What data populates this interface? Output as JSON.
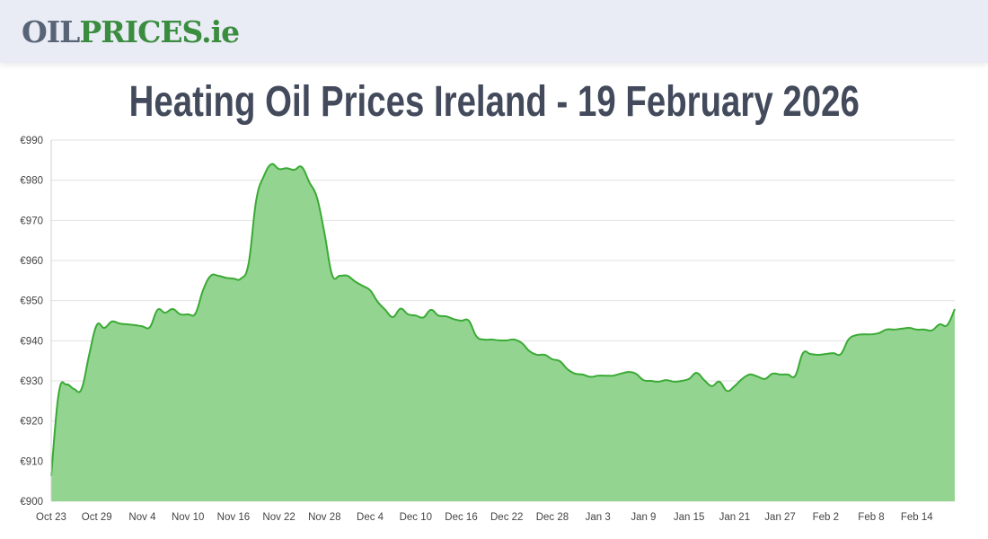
{
  "header": {
    "logo_part1": "OIL",
    "logo_part2": "PRICES.ie"
  },
  "page_title": "Heating Oil Prices Ireland - 19 February 2026",
  "colors": {
    "line": "#3aaa35",
    "fill": "#93d590",
    "grid": "#e2e2e2",
    "logo_gray": "#586376",
    "logo_green": "#3a8c3f"
  },
  "chart_data": {
    "type": "area",
    "title": "",
    "xlabel": "",
    "ylabel": "",
    "ylim": [
      900,
      990
    ],
    "grid": true,
    "y_ticks": [
      "€900",
      "€910",
      "€920",
      "€930",
      "€940",
      "€950",
      "€960",
      "€970",
      "€980",
      "€990"
    ],
    "x_ticks": [
      "Oct 23",
      "Oct 29",
      "Nov 4",
      "Nov 10",
      "Nov 16",
      "Nov 22",
      "Nov 28",
      "Dec 4",
      "Dec 10",
      "Dec 16",
      "Dec 22",
      "Dec 28",
      "Jan 3",
      "Jan 9",
      "Jan 15",
      "Jan 21",
      "Jan 27",
      "Feb 2",
      "Feb 8",
      "Feb 14"
    ],
    "x": [
      "Oct 23",
      "Oct 24",
      "Oct 25",
      "Oct 26",
      "Oct 27",
      "Oct 28",
      "Oct 29",
      "Oct 30",
      "Oct 31",
      "Nov 1",
      "Nov 2",
      "Nov 3",
      "Nov 4",
      "Nov 5",
      "Nov 6",
      "Nov 7",
      "Nov 8",
      "Nov 9",
      "Nov 10",
      "Nov 11",
      "Nov 12",
      "Nov 13",
      "Nov 14",
      "Nov 15",
      "Nov 16",
      "Nov 17",
      "Nov 18",
      "Nov 19",
      "Nov 20",
      "Nov 21",
      "Nov 22",
      "Nov 23",
      "Nov 24",
      "Nov 25",
      "Nov 26",
      "Nov 27",
      "Nov 28",
      "Nov 29",
      "Nov 30",
      "Dec 1",
      "Dec 2",
      "Dec 3",
      "Dec 4",
      "Dec 5",
      "Dec 6",
      "Dec 7",
      "Dec 8",
      "Dec 9",
      "Dec 10",
      "Dec 11",
      "Dec 12",
      "Dec 13",
      "Dec 14",
      "Dec 15",
      "Dec 16",
      "Dec 17",
      "Dec 18",
      "Dec 19",
      "Dec 20",
      "Dec 21",
      "Dec 22",
      "Dec 23",
      "Dec 24",
      "Dec 25",
      "Dec 26",
      "Dec 27",
      "Dec 28",
      "Dec 29",
      "Dec 30",
      "Dec 31",
      "Jan 1",
      "Jan 2",
      "Jan 3",
      "Jan 4",
      "Jan 5",
      "Jan 6",
      "Jan 7",
      "Jan 8",
      "Jan 9",
      "Jan 10",
      "Jan 11",
      "Jan 12",
      "Jan 13",
      "Jan 14",
      "Jan 15",
      "Jan 16",
      "Jan 17",
      "Jan 18",
      "Jan 19",
      "Jan 20",
      "Jan 21",
      "Jan 22",
      "Jan 23",
      "Jan 24",
      "Jan 25",
      "Jan 26",
      "Jan 27",
      "Jan 28",
      "Jan 29",
      "Jan 30",
      "Jan 31",
      "Feb 1",
      "Feb 2",
      "Feb 3",
      "Feb 4",
      "Feb 5",
      "Feb 6",
      "Feb 7",
      "Feb 8",
      "Feb 9",
      "Feb 10",
      "Feb 11",
      "Feb 12",
      "Feb 13",
      "Feb 14",
      "Feb 15",
      "Feb 16",
      "Feb 17",
      "Feb 18",
      "Feb 19"
    ],
    "values": [
      906.3,
      927.0,
      929.1,
      928.0,
      928.0,
      936.5,
      943.9,
      943.2,
      944.8,
      944.3,
      944.1,
      943.9,
      943.6,
      943.4,
      947.7,
      947.0,
      947.9,
      946.6,
      946.6,
      946.8,
      952.6,
      956.2,
      956.2,
      955.7,
      955.5,
      955.5,
      959.3,
      975.0,
      981.0,
      984.0,
      982.8,
      983.0,
      982.6,
      983.3,
      979.5,
      975.7,
      966.7,
      956.4,
      956.2,
      956.2,
      954.8,
      953.7,
      952.6,
      949.7,
      947.7,
      945.9,
      948.0,
      946.6,
      946.3,
      945.8,
      947.7,
      946.3,
      946.1,
      945.4,
      945.0,
      945.0,
      941.1,
      940.3,
      940.3,
      940.1,
      940.1,
      940.3,
      939.4,
      937.4,
      936.5,
      936.5,
      935.4,
      934.9,
      932.9,
      931.8,
      931.6,
      931.0,
      931.3,
      931.3,
      931.3,
      931.8,
      932.2,
      931.8,
      930.2,
      930.0,
      929.8,
      930.2,
      929.8,
      930.0,
      930.5,
      932.0,
      930.2,
      928.7,
      929.8,
      927.5,
      928.7,
      930.5,
      931.6,
      931.1,
      930.5,
      931.8,
      931.6,
      931.6,
      931.3,
      936.9,
      936.7,
      936.5,
      936.7,
      936.9,
      936.7,
      940.3,
      941.4,
      941.6,
      941.6,
      941.9,
      942.8,
      942.8,
      943.0,
      943.2,
      942.8,
      942.8,
      942.6,
      944.1,
      943.9,
      947.9
    ]
  }
}
